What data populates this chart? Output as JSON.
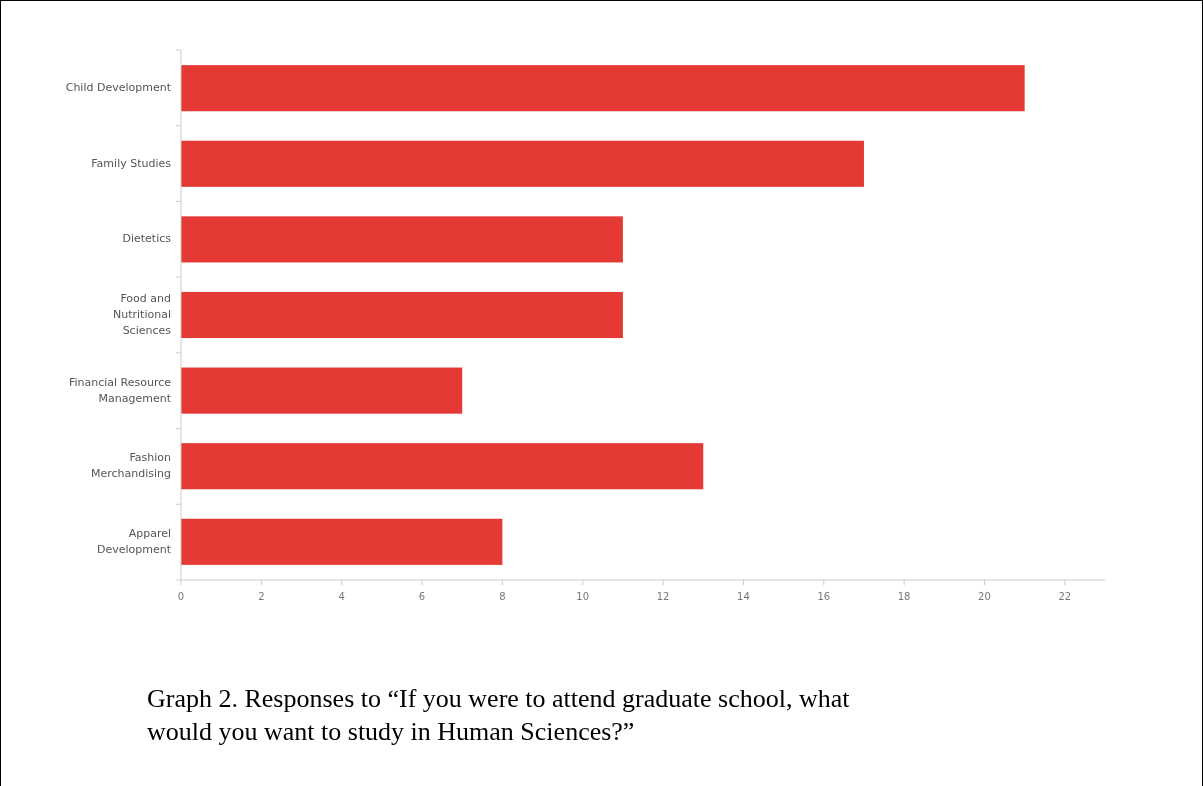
{
  "chart_data": {
    "type": "bar",
    "orientation": "horizontal",
    "categories": [
      "Child Development",
      "Family Studies",
      "Dietetics",
      "Food and Nutritional Sciences",
      "Financial Resource Management",
      "Fashion Merchandising",
      "Apparel Development"
    ],
    "values": [
      21,
      17,
      11,
      11,
      7,
      13,
      8
    ],
    "color": "#e53935",
    "xlim": [
      0,
      23
    ],
    "xticks": [
      0,
      2,
      4,
      6,
      8,
      10,
      12,
      14,
      16,
      18,
      20,
      22
    ],
    "grid": false,
    "annotations": [
      "Graph 2. Responses to “If you were to attend graduate school, what would you want to study in Human Sciences?”"
    ]
  }
}
